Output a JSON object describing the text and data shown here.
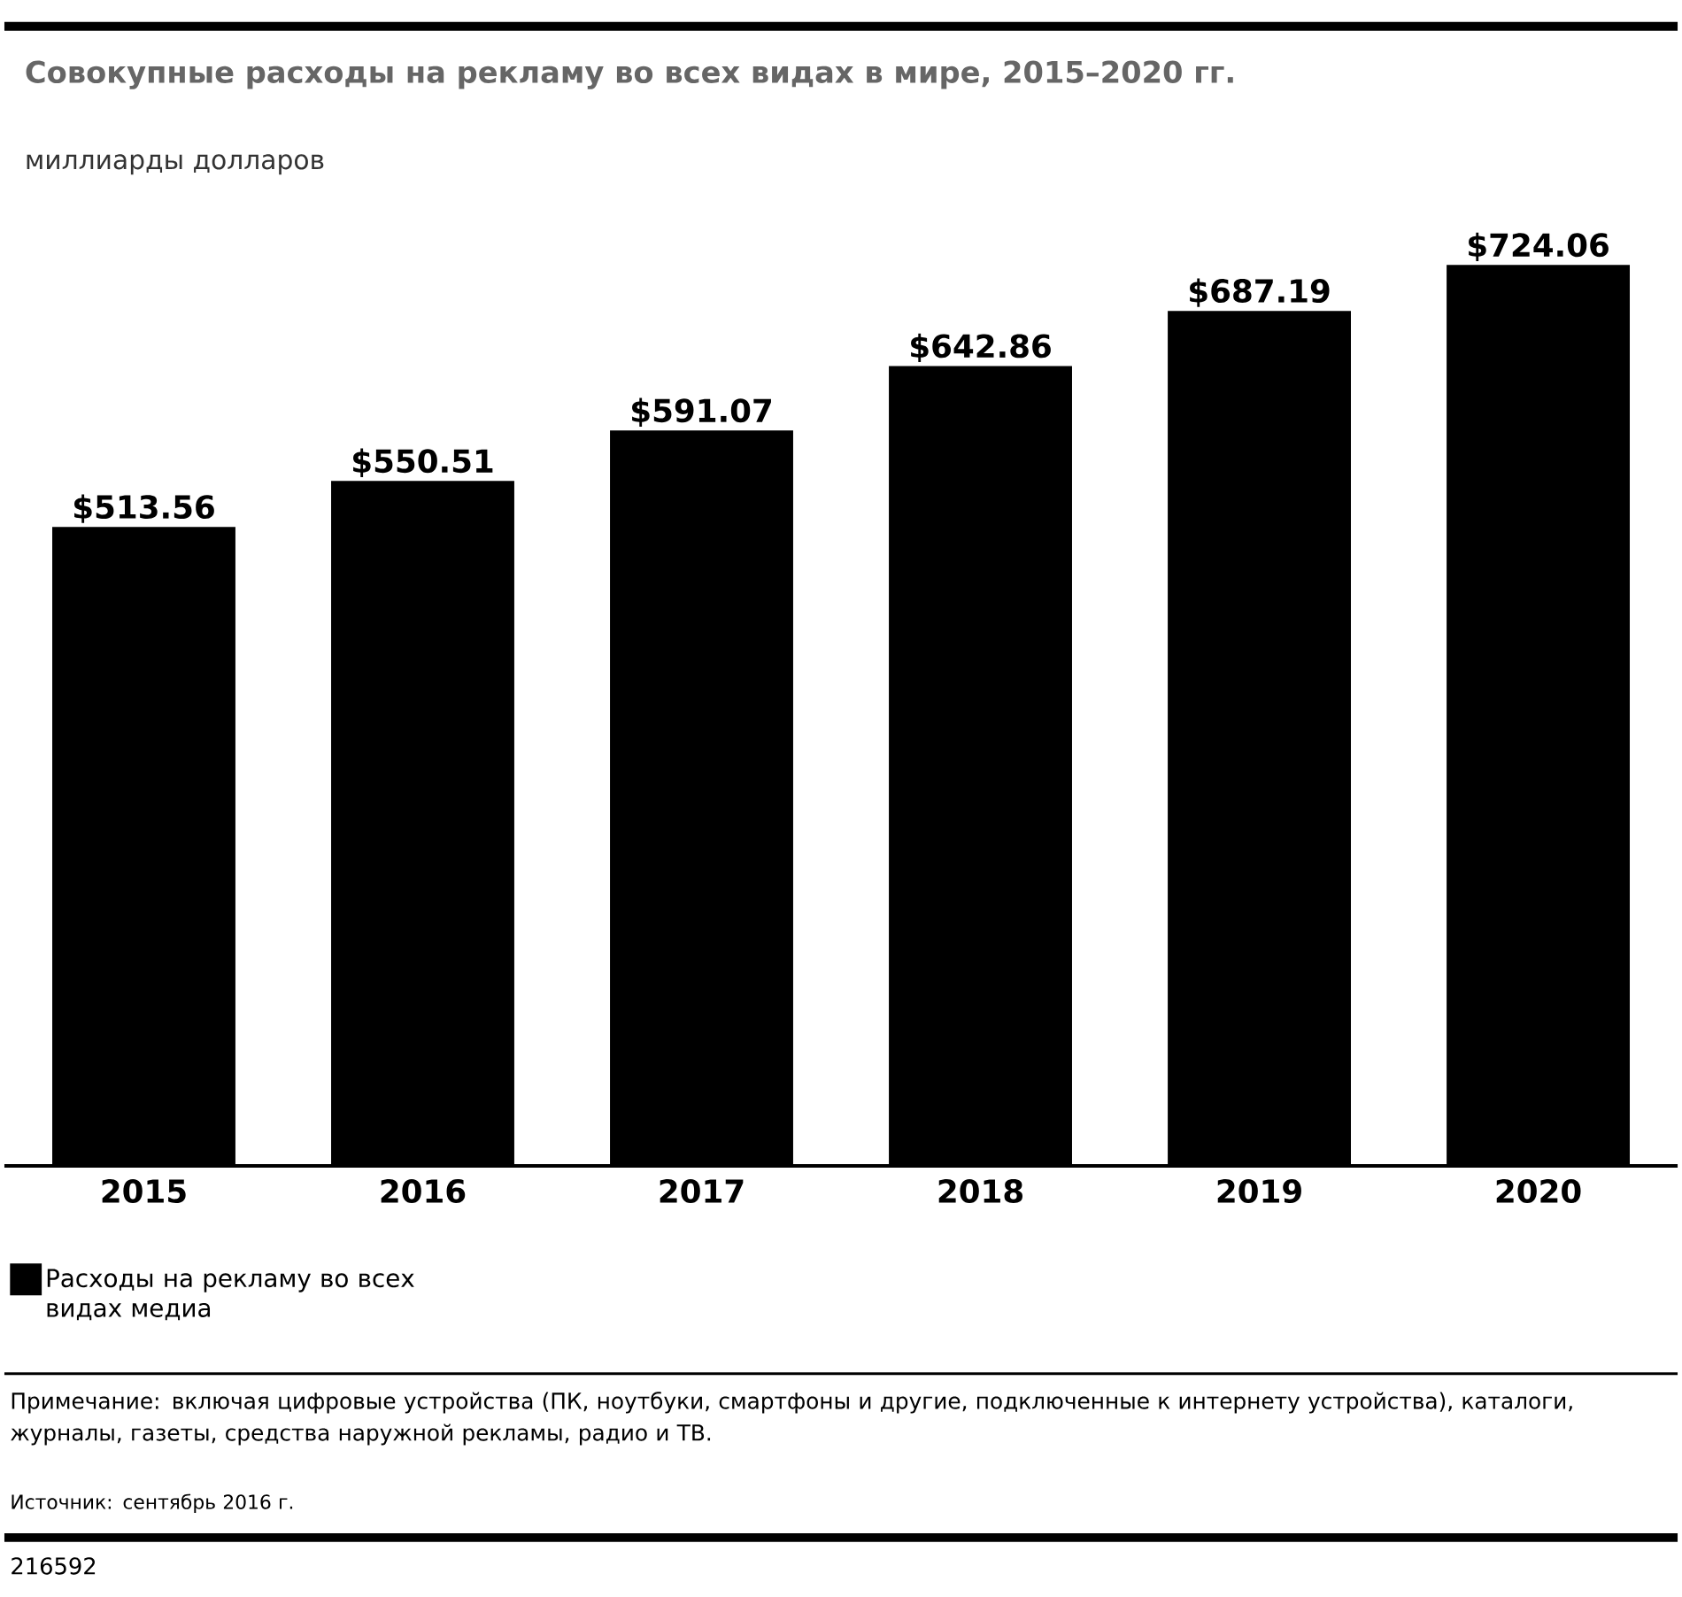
{
  "chart_data": {
    "type": "bar",
    "title": "Совокупные расходы на рекламу во всех видах в мире, 2015–2020 гг.",
    "subtitle": "миллиарды долларов",
    "categories": [
      "2015",
      "2016",
      "2017",
      "2018",
      "2019",
      "2020"
    ],
    "series": [
      {
        "name": "Расходы на рекламу во всех видах медиа",
        "color": "#000000",
        "values": [
          513.56,
          550.51,
          591.07,
          642.86,
          687.19,
          724.06
        ],
        "value_labels": [
          "$513.56",
          "$550.51",
          "$591.07",
          "$642.86",
          "$687.19",
          "$724.06"
        ]
      }
    ],
    "legend": "bottom left",
    "annotations": [
      "Примечание: включая цифровые устройства (ПК, ноутбуки, смартфоны и другие, подключенные к интернету устройства), каталоги, журналы, газеты, средства наружной рекламы, радио и ТВ.",
      "Источник: сентябрь 2016 г.",
      "216592"
    ]
  }
}
